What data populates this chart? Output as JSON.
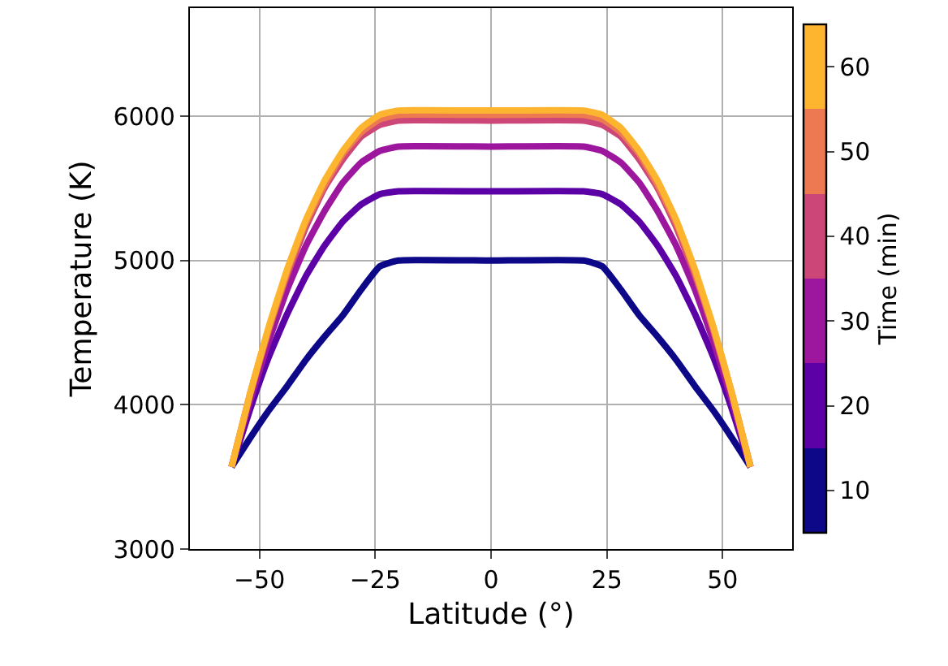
{
  "chart_data": {
    "type": "line",
    "xlabel": "Latitude (°)",
    "ylabel": "Temperature (K)",
    "clabel": "Time (min)",
    "x": [
      -56,
      -52,
      -48,
      -44,
      -40,
      -36,
      -32,
      -28,
      -24,
      -20,
      0,
      20,
      24,
      28,
      32,
      36,
      40,
      44,
      48,
      52,
      56
    ],
    "series": [
      {
        "color": "#0d0887",
        "values": [
          3570,
          3770,
          3960,
          4130,
          4310,
          4470,
          4620,
          4800,
          4960,
          5000,
          5000,
          5000,
          4960,
          4800,
          4620,
          4470,
          4310,
          4130,
          3960,
          3770,
          3570
        ]
      },
      {
        "color": "#5c01a6",
        "values": [
          3570,
          3970,
          4330,
          4630,
          4890,
          5100,
          5270,
          5390,
          5460,
          5480,
          5480,
          5480,
          5460,
          5390,
          5270,
          5100,
          4890,
          4630,
          4330,
          3970,
          3570
        ]
      },
      {
        "color": "#9c179e",
        "values": [
          3570,
          4030,
          4440,
          4800,
          5100,
          5340,
          5540,
          5680,
          5760,
          5790,
          5790,
          5790,
          5760,
          5680,
          5540,
          5340,
          5100,
          4800,
          4440,
          4030,
          3570
        ]
      },
      {
        "color": "#cc4778",
        "values": [
          3570,
          4070,
          4510,
          4900,
          5230,
          5500,
          5700,
          5860,
          5940,
          5970,
          5970,
          5970,
          5940,
          5860,
          5700,
          5500,
          5230,
          4900,
          4510,
          4070,
          3570
        ]
      },
      {
        "color": "#ed7953",
        "values": [
          3570,
          4080,
          4530,
          4920,
          5260,
          5520,
          5740,
          5890,
          5980,
          6010,
          6010,
          6010,
          5980,
          5890,
          5740,
          5520,
          5260,
          4920,
          4530,
          4080,
          3570
        ]
      },
      {
        "color": "#fdb42f",
        "values": [
          3570,
          4080,
          4540,
          4940,
          5280,
          5550,
          5760,
          5920,
          6010,
          6040,
          6040,
          6040,
          6010,
          5920,
          5760,
          5550,
          5280,
          4940,
          4540,
          4080,
          3570
        ]
      }
    ],
    "xlim": [
      -65,
      65
    ],
    "xticks": [
      {
        "value": -50,
        "label": "−50"
      },
      {
        "value": -25,
        "label": "−25"
      },
      0,
      25,
      50
    ],
    "ylim": [
      3000,
      6750
    ],
    "yticks": [
      3000,
      4000,
      5000,
      6000
    ],
    "clim": [
      5,
      65
    ],
    "cticks": [
      10,
      20,
      30,
      40,
      50,
      60
    ],
    "grid": true,
    "marker": "none",
    "line_style": "solid"
  }
}
